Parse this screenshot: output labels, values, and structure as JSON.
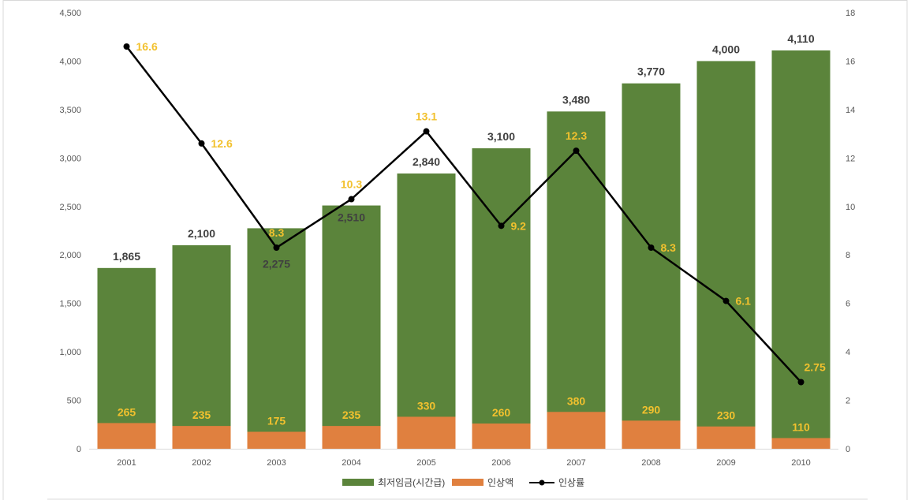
{
  "chart_data": {
    "type": "bar",
    "categories": [
      "2001",
      "2002",
      "2003",
      "2004",
      "2005",
      "2006",
      "2007",
      "2008",
      "2009",
      "2010"
    ],
    "series": [
      {
        "name": "최저임금(시간급)",
        "type": "bar",
        "axis": "left",
        "color": "#5b843b",
        "values": [
          1865,
          2100,
          2275,
          2510,
          2840,
          3100,
          3480,
          3770,
          4000,
          4110
        ],
        "labels": [
          "1,865",
          "2,100",
          "2,275",
          "2,510",
          "2,840",
          "3,100",
          "3,480",
          "3,770",
          "4,000",
          "4,110"
        ]
      },
      {
        "name": "인상액",
        "type": "bar",
        "axis": "left",
        "color": "#e0803f",
        "values": [
          265,
          235,
          175,
          235,
          330,
          260,
          380,
          290,
          230,
          110
        ],
        "labels": [
          "265",
          "235",
          "175",
          "235",
          "330",
          "260",
          "380",
          "290",
          "230",
          "110"
        ]
      },
      {
        "name": "인상률",
        "type": "line",
        "axis": "right",
        "color": "#000000",
        "values": [
          16.6,
          12.6,
          8.3,
          10.3,
          13.1,
          9.2,
          12.3,
          8.3,
          6.1,
          2.75
        ],
        "labels": [
          "16.6",
          "12.6",
          "8.3",
          "10.3",
          "13.1",
          "9.2",
          "12.3",
          "8.3",
          "6.1",
          "2.75"
        ]
      }
    ],
    "y_left": {
      "min": 0,
      "max": 4500,
      "ticks": [
        "0",
        "500",
        "1,000",
        "1,500",
        "2,000",
        "2,500",
        "3,000",
        "3,500",
        "4,000",
        "4,500"
      ]
    },
    "y_right": {
      "min": 0,
      "max": 18,
      "ticks": [
        "0",
        "2",
        "4",
        "6",
        "8",
        "10",
        "12",
        "14",
        "16",
        "18"
      ]
    },
    "title": "",
    "xlabel": "",
    "ylabel": "",
    "grid": false,
    "legend_position": "bottom",
    "label_colors": {
      "wage": "#404040",
      "increase": "#f2c12e",
      "rate": "#f2c12e"
    }
  }
}
